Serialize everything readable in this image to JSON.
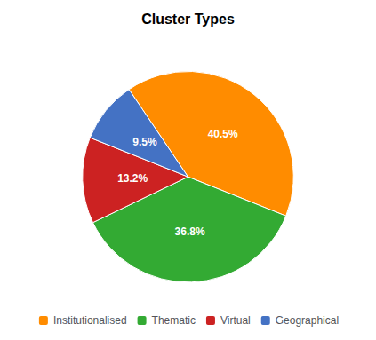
{
  "chart_data": {
    "type": "pie",
    "title": "Cluster Types",
    "categories": [
      "Institutionalised",
      "Thematic",
      "Virtual",
      "Geographical"
    ],
    "values": [
      40.5,
      36.8,
      13.2,
      9.5
    ],
    "value_labels": [
      "40.5%",
      "36.8%",
      "13.2%",
      "9.5%"
    ],
    "colors": [
      "#FF8C00",
      "#33AA33",
      "#CC2222",
      "#4472C4"
    ],
    "data_labels": true,
    "legend": "bottom"
  }
}
